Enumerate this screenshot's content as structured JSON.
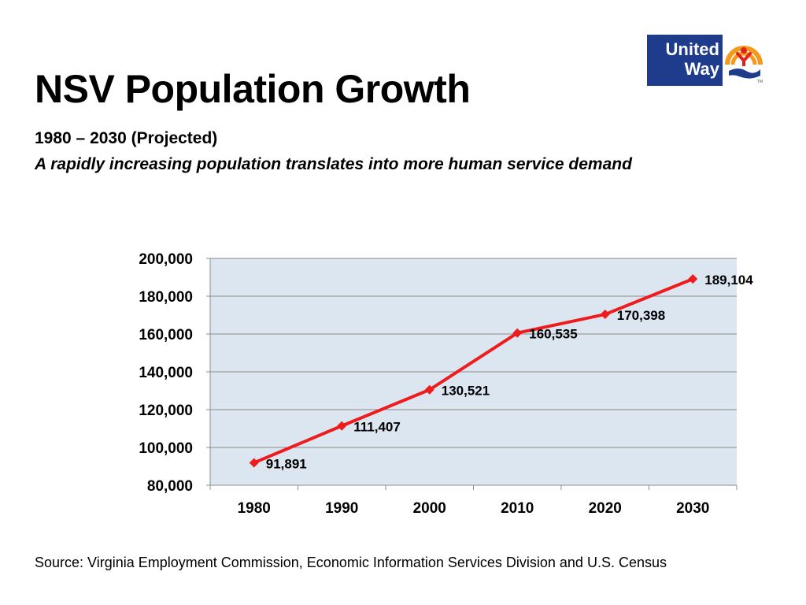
{
  "slide": {
    "title": "NSV Population Growth",
    "subtitle": "1980 – 2030 (Projected)",
    "tagline": "A rapidly increasing population translates into more human service demand",
    "source": "Source: Virginia Employment Commission, Economic Information Services Division and U.S. Census"
  },
  "logo": {
    "line1": "United",
    "line2": "Way",
    "tm": "TM",
    "colors": {
      "navy": "#1f3b8c",
      "orange": "#f39a1e",
      "red": "#e2231a"
    }
  },
  "chart_data": {
    "type": "line",
    "x": [
      "1980",
      "1990",
      "2000",
      "2010",
      "2020",
      "2030"
    ],
    "series": [
      {
        "values": [
          91891,
          111407,
          130521,
          160535,
          170398,
          189104
        ],
        "labels": [
          "91,891",
          "111,407",
          "130,521",
          "160,535",
          "170,398",
          "189,104"
        ],
        "color": "#ee1c1c",
        "marker": "diamond"
      }
    ],
    "ylim": [
      80000,
      200000
    ],
    "yticks": [
      80000,
      100000,
      120000,
      140000,
      160000,
      180000,
      200000
    ],
    "ytick_labels": [
      "80,000",
      "100,000",
      "120,000",
      "140,000",
      "160,000",
      "180,000",
      "200,000"
    ],
    "grid": true,
    "legend": "none",
    "plot_background": "#dce6f1",
    "gridline_color": "#8c8c8c"
  }
}
